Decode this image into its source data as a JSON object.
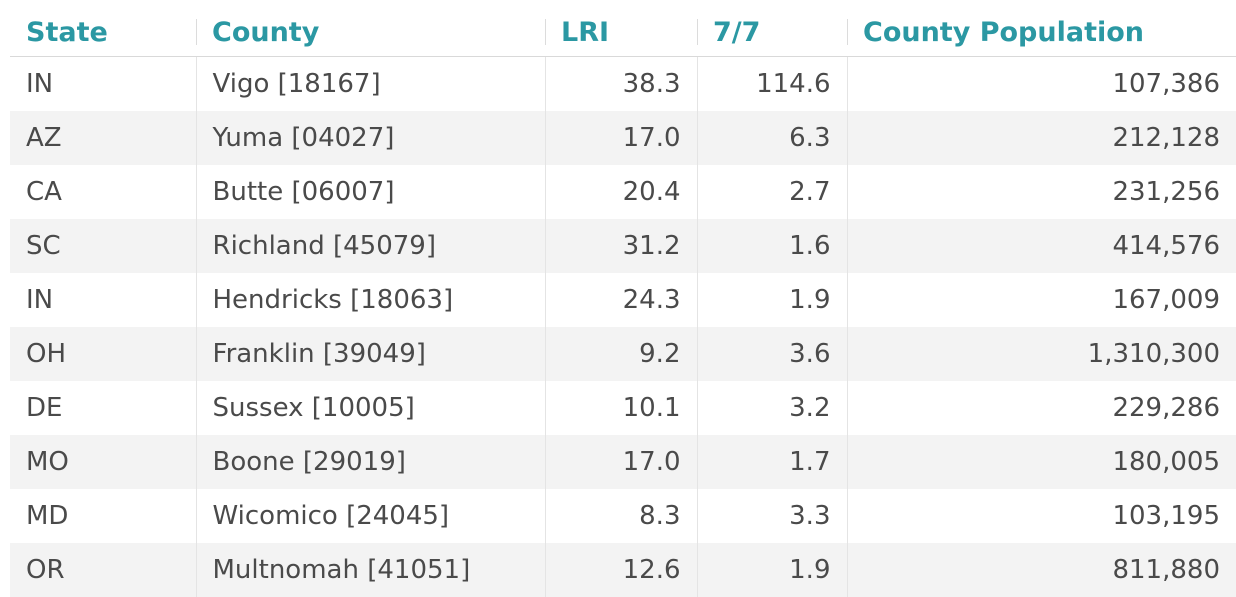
{
  "chart_data": {
    "type": "table",
    "columns": [
      "State",
      "County",
      "LRI",
      "7/7",
      "County Population"
    ],
    "rows": [
      [
        "IN",
        "Vigo [18167]",
        "38.3",
        "114.6",
        "107,386"
      ],
      [
        "AZ",
        "Yuma [04027]",
        "17.0",
        "6.3",
        "212,128"
      ],
      [
        "CA",
        "Butte [06007]",
        "20.4",
        "2.7",
        "231,256"
      ],
      [
        "SC",
        "Richland [45079]",
        "31.2",
        "1.6",
        "414,576"
      ],
      [
        "IN",
        "Hendricks [18063]",
        "24.3",
        "1.9",
        "167,009"
      ],
      [
        "OH",
        "Franklin [39049]",
        "9.2",
        "3.6",
        "1,310,300"
      ],
      [
        "DE",
        "Sussex [10005]",
        "10.1",
        "3.2",
        "229,286"
      ],
      [
        "MO",
        "Boone [29019]",
        "17.0",
        "1.7",
        "180,005"
      ],
      [
        "MD",
        "Wicomico [24045]",
        "8.3",
        "3.3",
        "103,195"
      ],
      [
        "OR",
        "Multnomah [41051]",
        "12.6",
        "1.9",
        "811,880"
      ]
    ]
  },
  "colors": {
    "header_text": "#2b98a3",
    "body_text": "#4a4a4a",
    "row_stripe": "#f3f3f3"
  }
}
